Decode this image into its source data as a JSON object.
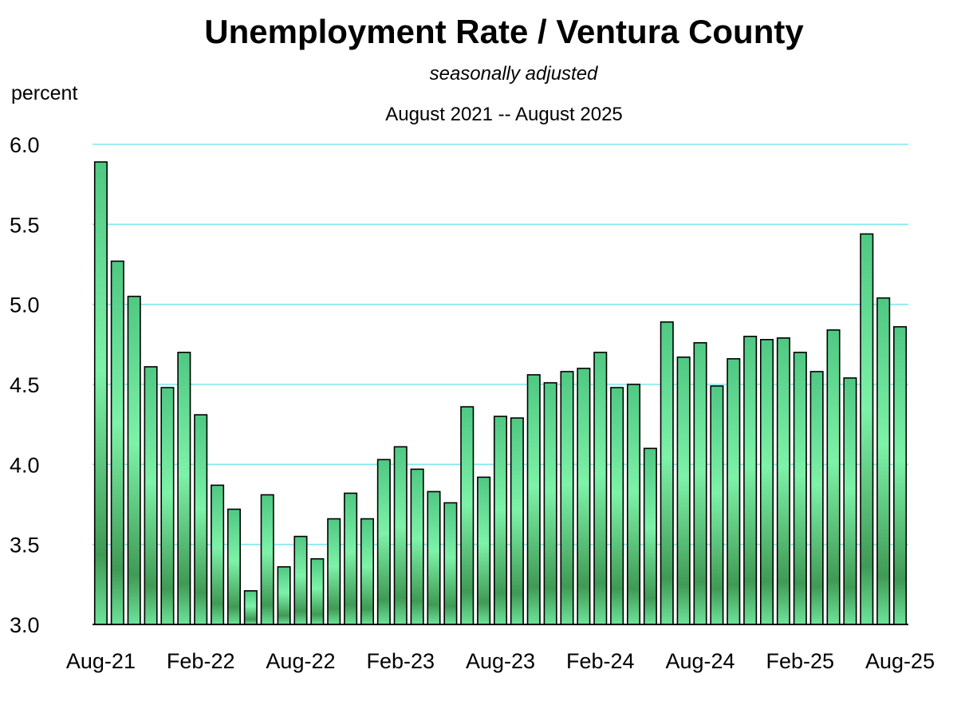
{
  "chart_data": {
    "type": "bar",
    "title": "Unemployment Rate / Ventura County",
    "subtitle": "seasonally adjusted",
    "date_range": "August 2021 -- August 2025",
    "ylabel": "percent",
    "ylim": [
      3.0,
      6.0
    ],
    "y_ticks": [
      "3.0",
      "3.5",
      "4.0",
      "4.5",
      "5.0",
      "5.5",
      "6.0"
    ],
    "x_tick_labels": [
      {
        "index": 0,
        "label": "Aug-21"
      },
      {
        "index": 6,
        "label": "Feb-22"
      },
      {
        "index": 12,
        "label": "Aug-22"
      },
      {
        "index": 18,
        "label": "Feb-23"
      },
      {
        "index": 24,
        "label": "Aug-23"
      },
      {
        "index": 30,
        "label": "Feb-24"
      },
      {
        "index": 36,
        "label": "Aug-24"
      },
      {
        "index": 42,
        "label": "Feb-25"
      },
      {
        "index": 48,
        "label": "Aug-25"
      }
    ],
    "grid": true,
    "legend": "none",
    "colors": {
      "grid": "#7ee8f0",
      "bar_light": "#7df2a8",
      "bar_dark": "#3f9a55",
      "bar_outline": "#000000"
    },
    "categories": [
      "Aug-21",
      "Sep-21",
      "Oct-21",
      "Nov-21",
      "Dec-21",
      "Jan-22",
      "Feb-22",
      "Mar-22",
      "Apr-22",
      "May-22",
      "Jun-22",
      "Jul-22",
      "Aug-22",
      "Sep-22",
      "Oct-22",
      "Nov-22",
      "Dec-22",
      "Jan-23",
      "Feb-23",
      "Mar-23",
      "Apr-23",
      "May-23",
      "Jun-23",
      "Jul-23",
      "Aug-23",
      "Sep-23",
      "Oct-23",
      "Nov-23",
      "Dec-23",
      "Jan-24",
      "Feb-24",
      "Mar-24",
      "Apr-24",
      "May-24",
      "Jun-24",
      "Jul-24",
      "Aug-24",
      "Sep-24",
      "Oct-24",
      "Nov-24",
      "Dec-24",
      "Jan-25",
      "Feb-25",
      "Mar-25",
      "Apr-25",
      "May-25",
      "Jun-25",
      "Jul-25",
      "Aug-25"
    ],
    "values": [
      5.89,
      5.27,
      5.05,
      4.61,
      4.48,
      4.7,
      4.31,
      3.87,
      3.72,
      3.21,
      3.81,
      3.36,
      3.55,
      3.41,
      3.66,
      3.82,
      3.66,
      4.03,
      4.11,
      3.97,
      3.83,
      3.76,
      4.36,
      3.92,
      4.3,
      4.29,
      4.56,
      4.51,
      4.58,
      4.6,
      4.7,
      4.48,
      4.5,
      4.1,
      4.89,
      4.67,
      4.76,
      4.49,
      4.66,
      4.8,
      4.78,
      4.79,
      4.7,
      4.58,
      4.84,
      4.54,
      5.44,
      5.04,
      4.86
    ]
  }
}
